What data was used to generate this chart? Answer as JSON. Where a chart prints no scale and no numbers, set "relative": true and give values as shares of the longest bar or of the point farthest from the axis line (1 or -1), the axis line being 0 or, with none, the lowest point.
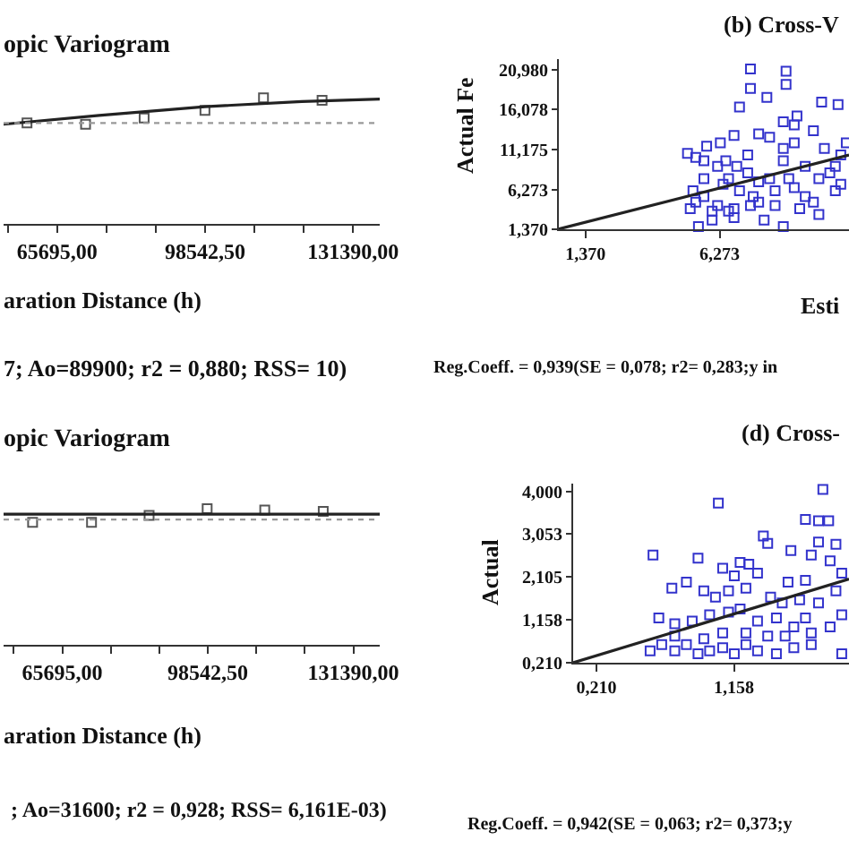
{
  "chart_data": [
    {
      "type": "scatter",
      "title": "opic Variogram",
      "xlabel": "aration Distance (h)",
      "relative": true,
      "xlim": [
        53800,
        137300
      ],
      "xticks": [
        {
          "value": 54746,
          "label": null
        },
        {
          "value": 65695,
          "label": "65695,00"
        },
        {
          "value": 76644,
          "label": null
        },
        {
          "value": 87593,
          "label": null
        },
        {
          "value": 98542.5,
          "label": "98542,50"
        },
        {
          "value": 109491,
          "label": null
        },
        {
          "value": 120441,
          "label": null
        },
        {
          "value": 131390,
          "label": "131390,00"
        }
      ],
      "annotations": [
        "7; Ao=89900; r2 = 0,880; RSS= 10)"
      ],
      "ref_lines": [
        {
          "axis": "y",
          "value": 0.8,
          "color": "#999999",
          "line_style": "dotted"
        }
      ],
      "series": [
        {
          "type": "scatter",
          "color": "#555555",
          "marker": "square",
          "x": [
            59000,
            72000,
            85000,
            98500,
            111500,
            124500
          ],
          "values": [
            0.8,
            0.79,
            0.84,
            0.9,
            1,
            0.98
          ]
        },
        {
          "type": "line",
          "color": "#222222",
          "line_style": "solid",
          "x": [
            53800,
            75000,
            98500,
            120000,
            137300
          ],
          "values": [
            0.79,
            0.86,
            0.93,
            0.97,
            0.99
          ]
        }
      ]
    },
    {
      "type": "scatter",
      "title": "(b) Cross-V",
      "xlabel": "Esti",
      "ylabel": "Actual Fe",
      "xlim": [
        0.4,
        11.0
      ],
      "ylim": [
        1.37,
        22.3
      ],
      "xticks": [
        {
          "value": 1.37,
          "label": "1,370"
        },
        {
          "value": 6.273,
          "label": "6,273"
        }
      ],
      "yticks": [
        {
          "value": 1.37,
          "label": "1,370"
        },
        {
          "value": 6.273,
          "label": "6,273"
        },
        {
          "value": 11.175,
          "label": "11,175"
        },
        {
          "value": 16.078,
          "label": "16,078"
        },
        {
          "value": 20.98,
          "label": "20,980"
        }
      ],
      "annotations": [
        "Reg.Coeff. = 0,939(SE = 0,078; r2= 0,283;y in"
      ],
      "series": [
        {
          "type": "scatter",
          "color": "#3333cc",
          "marker": "square",
          "x": [
            7.4,
            8.7,
            7.4,
            8.0,
            7.0,
            8.7,
            10.0,
            10.6,
            8.6,
            9.0,
            6.3,
            6.8,
            7.7,
            8.1,
            5.1,
            5.4,
            5.7,
            6.2,
            6.6,
            7.3,
            7.7,
            8.3,
            9.0,
            9.4,
            9.9,
            10.3,
            10.7,
            5.3,
            5.7,
            6.2,
            6.6,
            5.5,
            6.0,
            6.8,
            7.4,
            7.9,
            8.6,
            9.2,
            9.7,
            10.5,
            10.7,
            10.1,
            9.0,
            9.4,
            8.6,
            8.1,
            7.0,
            7.7,
            6.4,
            5.7,
            5.2,
            5.4,
            6.0,
            6.8,
            7.5,
            8.3,
            8.8,
            9.9,
            10.5,
            10.9,
            9.7,
            9.1,
            8.6,
            7.3,
            5.8,
            6.5,
            6.9
          ],
          "values": [
            21.1,
            20.8,
            18.7,
            17.6,
            16.4,
            19.2,
            17.0,
            16.7,
            14.6,
            14.2,
            12.0,
            12.9,
            13.1,
            12.7,
            10.7,
            10.2,
            9.8,
            9.1,
            7.6,
            8.3,
            7.2,
            6.1,
            6.5,
            5.4,
            7.6,
            8.3,
            6.9,
            6.1,
            5.4,
            4.3,
            3.6,
            1.7,
            2.5,
            3.9,
            4.3,
            2.5,
            1.7,
            3.9,
            4.7,
            6.1,
            10.5,
            11.3,
            12.0,
            9.1,
            9.8,
            7.6,
            6.1,
            4.7,
            6.9,
            7.6,
            3.9,
            4.7,
            3.6,
            2.8,
            5.4,
            4.3,
            7.6,
            3.2,
            9.1,
            12.0,
            13.5,
            15.3,
            11.3,
            10.5,
            11.6,
            9.8,
            9.1
          ]
        },
        {
          "type": "line",
          "color": "#222222",
          "line_style": "solid",
          "x": [
            0.4,
            11.0
          ],
          "values": [
            1.4,
            10.5
          ]
        }
      ]
    },
    {
      "type": "scatter",
      "title": "opic Variogram",
      "xlabel": "aration Distance (h)",
      "relative": true,
      "xlim": [
        52450,
        137350
      ],
      "xticks": [
        {
          "value": 54746,
          "label": null
        },
        {
          "value": 65695,
          "label": "65695,00"
        },
        {
          "value": 76644,
          "label": null
        },
        {
          "value": 87593,
          "label": null
        },
        {
          "value": 98542.5,
          "label": "98542,50"
        },
        {
          "value": 109491,
          "label": null
        },
        {
          "value": 120441,
          "label": null
        },
        {
          "value": 131390,
          "label": "131390,00"
        }
      ],
      "annotations": [
        "; Ao=31600; r2 = 0,928; RSS= 6,161E-03)"
      ],
      "ref_lines": [
        {
          "axis": "y",
          "value": 0.92,
          "color": "#999999",
          "line_style": "dotted"
        }
      ],
      "series": [
        {
          "type": "scatter",
          "color": "#555555",
          "marker": "square",
          "x": [
            59000,
            72300,
            85300,
            98400,
            111400,
            124600
          ],
          "values": [
            0.9,
            0.9,
            0.95,
            1,
            0.99,
            0.98
          ]
        },
        {
          "type": "line",
          "color": "#222222",
          "line_style": "solid",
          "x": [
            52450,
            137350
          ],
          "values": [
            0.96,
            0.96
          ]
        }
      ]
    },
    {
      "type": "scatter",
      "title": "(d) Cross-",
      "ylabel": "Actual",
      "xlim": [
        0.05,
        1.95
      ],
      "ylim": [
        0.21,
        4.17
      ],
      "xticks": [
        {
          "value": 0.21,
          "label": "0,210"
        },
        {
          "value": 1.158,
          "label": "1,158"
        }
      ],
      "yticks": [
        {
          "value": 0.21,
          "label": "0,210"
        },
        {
          "value": 1.158,
          "label": "1,158"
        },
        {
          "value": 2.105,
          "label": "2,105"
        },
        {
          "value": 3.053,
          "label": "3,053"
        },
        {
          "value": 4,
          "label": "4,000"
        }
      ],
      "annotations": [
        "Reg.Coeff. = 0,942(SE = 0,063; r2= 0,373;y"
      ],
      "series": [
        {
          "type": "scatter",
          "color": "#3333cc",
          "marker": "square",
          "x": [
            1.77,
            1.05,
            1.65,
            1.74,
            1.81,
            1.36,
            1.39,
            1.74,
            1.86,
            0.6,
            0.91,
            1.55,
            1.69,
            1.82,
            1.2,
            1.26,
            1.08,
            1.16,
            1.32,
            1.53,
            1.65,
            1.9,
            0.73,
            0.83,
            0.95,
            1.03,
            1.12,
            1.24,
            1.41,
            1.49,
            1.61,
            1.74,
            1.86,
            0.64,
            0.75,
            0.87,
            0.99,
            1.12,
            1.2,
            1.32,
            1.45,
            1.57,
            1.69,
            1.82,
            0.58,
            0.66,
            0.75,
            0.83,
            0.91,
            0.99,
            1.08,
            1.16,
            1.24,
            1.32,
            1.45,
            1.57,
            1.69,
            1.9,
            0.75,
            0.95,
            1.08,
            1.24,
            1.39,
            1.51,
            1.65,
            1.9
          ],
          "values": [
            4.04,
            3.74,
            3.38,
            3.35,
            3.35,
            3.01,
            2.85,
            2.88,
            2.83,
            2.59,
            2.52,
            2.69,
            2.59,
            2.46,
            2.43,
            2.39,
            2.3,
            2.13,
            2.19,
            1.99,
            2.03,
            2.19,
            1.86,
            1.99,
            1.8,
            1.66,
            1.8,
            1.86,
            1.66,
            1.53,
            1.6,
            1.53,
            1.8,
            1.2,
            1.07,
            1.13,
            1.27,
            1.33,
            1.4,
            1.13,
            1.2,
            1.0,
            0.87,
            1.0,
            0.47,
            0.61,
            0.47,
            0.61,
            0.41,
            0.47,
            0.54,
            0.41,
            0.61,
            0.47,
            0.41,
            0.54,
            0.61,
            0.41,
            0.8,
            0.74,
            0.87,
            0.87,
            0.8,
            0.8,
            1.2,
            1.27
          ]
        },
        {
          "type": "line",
          "color": "#222222",
          "line_style": "solid",
          "x": [
            0.05,
            1.95
          ],
          "values": [
            0.21,
            2.06
          ]
        }
      ]
    }
  ]
}
